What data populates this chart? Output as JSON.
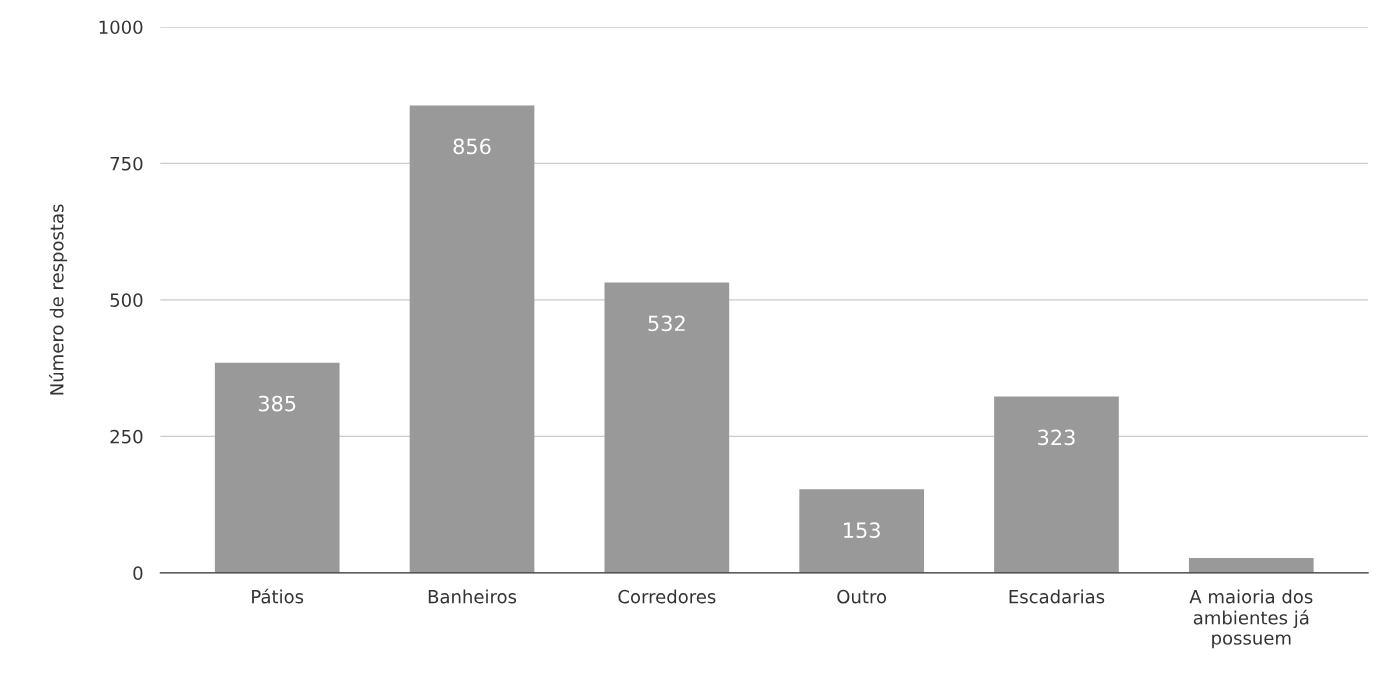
{
  "chart_data": {
    "type": "bar",
    "ylabel": "Número de respostas",
    "categories": [
      "Pátios",
      "Banheiros",
      "Corredores",
      "Outro",
      "Escadarias",
      "A maioria dos\nambientes já\npossuem"
    ],
    "values": [
      385,
      856,
      532,
      153,
      323,
      27
    ],
    "value_labels": [
      "385",
      "856",
      "532",
      "153",
      "323",
      null
    ],
    "color": "#999999",
    "ylim": [
      0,
      1000
    ],
    "yticks": [
      0,
      250,
      500,
      750,
      1000
    ],
    "grid": "y"
  }
}
